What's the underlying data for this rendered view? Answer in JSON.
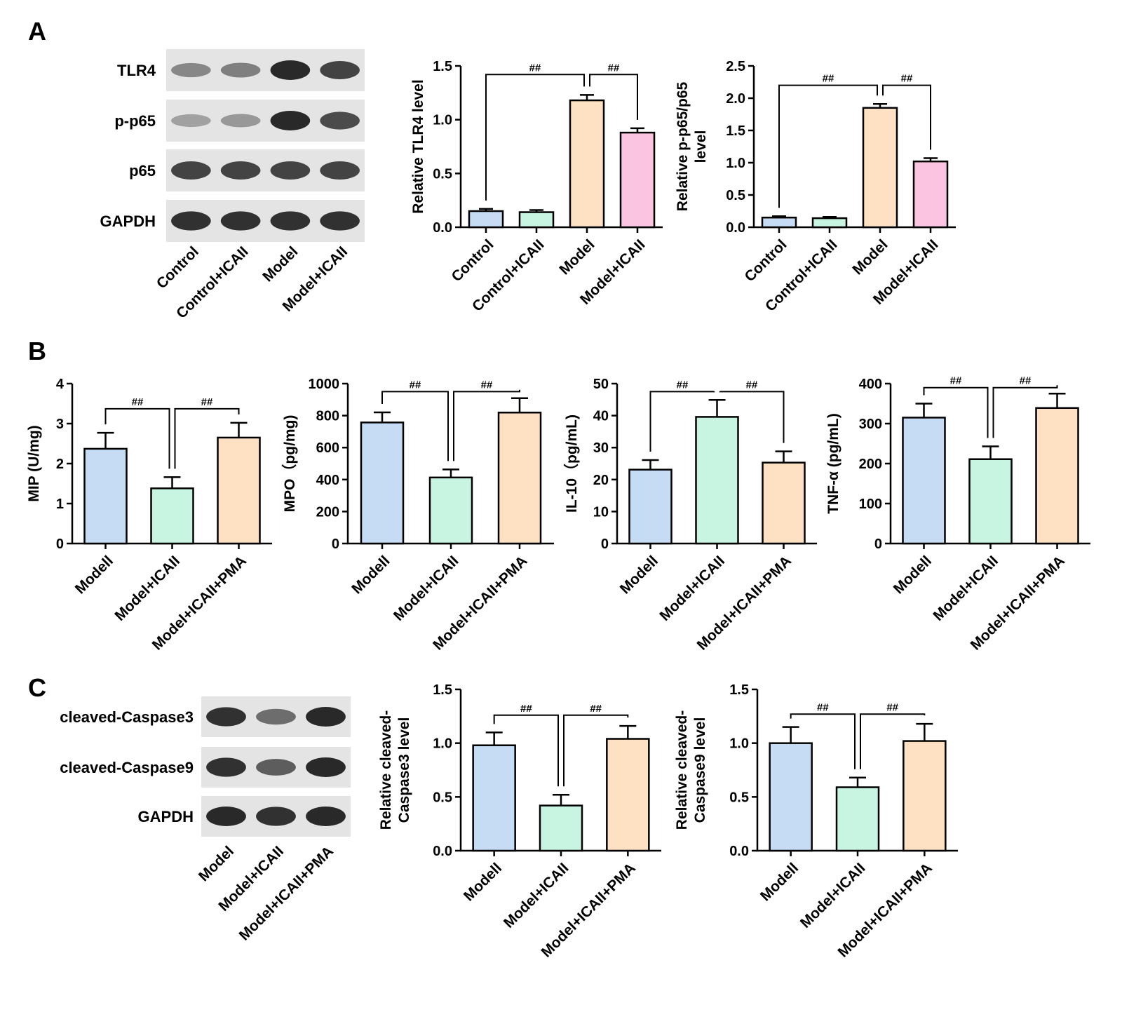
{
  "panels": {
    "A": {
      "letter": "A"
    },
    "B": {
      "letter": "B"
    },
    "C": {
      "letter": "C"
    }
  },
  "colors": {
    "blue": "#c6dcf5",
    "green": "#c8f5e2",
    "peach": "#fde1c2",
    "pink": "#fbc4e0"
  },
  "blots": [
    {
      "panel": "A",
      "bands": [
        "TLR4",
        "p-p65",
        "p65",
        "GAPDH"
      ],
      "band_intensity": [
        [
          0.45,
          0.5,
          1.0,
          0.85
        ],
        [
          0.3,
          0.35,
          1.0,
          0.8
        ],
        [
          0.85,
          0.85,
          0.85,
          0.85
        ],
        [
          0.95,
          0.95,
          0.95,
          0.95
        ]
      ],
      "lanes": [
        "Control",
        "Control+ICAII",
        "Model",
        "Model+ICAII"
      ]
    },
    {
      "panel": "C",
      "bands": [
        "cleaved-Caspase3",
        "cleaved-Caspase9",
        "GAPDH"
      ],
      "band_intensity": [
        [
          0.95,
          0.6,
          1.0
        ],
        [
          0.95,
          0.7,
          1.0
        ],
        [
          1.0,
          0.95,
          1.0
        ]
      ],
      "lanes": [
        "Model",
        "Model+ICAII",
        "Model+ICAII+PMA"
      ]
    }
  ],
  "chart_data": [
    {
      "panel": "A",
      "type": "bar",
      "categories": [
        "Control",
        "Control+ICAII",
        "Model",
        "Model+ICAII"
      ],
      "values": [
        0.15,
        0.14,
        1.18,
        0.88
      ],
      "errors": [
        0.02,
        0.02,
        0.05,
        0.04
      ],
      "bar_colors": [
        "#c6dcf5",
        "#c8f5e2",
        "#fde1c2",
        "#fbc4e0"
      ],
      "ylabel": [
        "Relative TLR4 level"
      ],
      "ylim": [
        0,
        1.5
      ],
      "yticks": [
        "0.0",
        "0.5",
        "1.0",
        "1.5"
      ],
      "significance": [
        {
          "label": "##",
          "bars": [
            0,
            2
          ],
          "y": 1.42
        },
        {
          "label": "##",
          "bars": [
            2,
            3
          ],
          "y": 1.42
        }
      ]
    },
    {
      "panel": "A",
      "type": "bar",
      "categories": [
        "Control",
        "Control+ICAII",
        "Model",
        "Model+ICAII"
      ],
      "values": [
        0.15,
        0.14,
        1.85,
        1.02
      ],
      "errors": [
        0.02,
        0.02,
        0.06,
        0.05
      ],
      "bar_colors": [
        "#c6dcf5",
        "#c8f5e2",
        "#fde1c2",
        "#fbc4e0"
      ],
      "ylabel": [
        "Relative p-p65/p65",
        "level"
      ],
      "ylim": [
        0,
        2.5
      ],
      "yticks": [
        "0.0",
        "0.5",
        "1.0",
        "1.5",
        "2.0",
        "2.5"
      ],
      "significance": [
        {
          "label": "##",
          "bars": [
            0,
            2
          ],
          "y": 2.2
        },
        {
          "label": "##",
          "bars": [
            2,
            3
          ],
          "y": 2.2
        }
      ]
    },
    {
      "panel": "B",
      "type": "bar",
      "categories": [
        "Modell",
        "Model+ICAII",
        "Model+ICAII+PMA"
      ],
      "values": [
        2.37,
        1.38,
        2.65
      ],
      "errors": [
        0.4,
        0.28,
        0.37
      ],
      "bar_colors": [
        "#c6dcf5",
        "#c8f5e2",
        "#fde1c2"
      ],
      "ylabel": [
        "MIP (U/mg)"
      ],
      "ylim": [
        0,
        4
      ],
      "yticks": [
        "0",
        "1",
        "2",
        "3",
        "4"
      ],
      "significance": [
        {
          "label": "##",
          "bars": [
            0,
            1
          ],
          "y": 3.37
        },
        {
          "label": "##",
          "bars": [
            1,
            2
          ],
          "y": 3.37
        }
      ]
    },
    {
      "panel": "B",
      "type": "bar",
      "categories": [
        "Modell",
        "Model+ICAII",
        "Model+ICAII+PMA"
      ],
      "values": [
        757,
        413,
        819
      ],
      "errors": [
        63,
        50,
        90
      ],
      "bar_colors": [
        "#c6dcf5",
        "#c8f5e2",
        "#fde1c2"
      ],
      "ylabel": [
        "MPO（pg/mg)"
      ],
      "ylim": [
        0,
        1000
      ],
      "yticks": [
        "0",
        "200",
        "400",
        "600",
        "800",
        "1000"
      ],
      "significance": [
        {
          "label": "##",
          "bars": [
            0,
            1
          ],
          "y": 950
        },
        {
          "label": "##",
          "bars": [
            1,
            2
          ],
          "y": 950
        }
      ]
    },
    {
      "panel": "B",
      "type": "bar",
      "categories": [
        "Modell",
        "Model+ICAII",
        "Model+ICAII+PMA"
      ],
      "values": [
        23.1,
        39.6,
        25.3
      ],
      "errors": [
        3.0,
        5.3,
        3.5
      ],
      "bar_colors": [
        "#c6dcf5",
        "#c8f5e2",
        "#fde1c2"
      ],
      "ylabel": [
        "IL-10（pg/mL)"
      ],
      "ylim": [
        0,
        50
      ],
      "yticks": [
        "0",
        "10",
        "20",
        "30",
        "40",
        "50"
      ],
      "significance": [
        {
          "label": "##",
          "bars": [
            0,
            1
          ],
          "y": 47.5
        },
        {
          "label": "##",
          "bars": [
            1,
            2
          ],
          "y": 47.5
        }
      ]
    },
    {
      "panel": "B",
      "type": "bar",
      "categories": [
        "Modell",
        "Model+ICAII",
        "Model+ICAII+PMA"
      ],
      "values": [
        315,
        211,
        339
      ],
      "errors": [
        35,
        32,
        36
      ],
      "bar_colors": [
        "#c6dcf5",
        "#c8f5e2",
        "#fde1c2"
      ],
      "ylabel": [
        "TNF-α (pg/mL)"
      ],
      "ylim": [
        0,
        400
      ],
      "yticks": [
        "0",
        "100",
        "200",
        "300",
        "400"
      ],
      "significance": [
        {
          "label": "##",
          "bars": [
            0,
            1
          ],
          "y": 390
        },
        {
          "label": "##",
          "bars": [
            1,
            2
          ],
          "y": 390
        }
      ]
    },
    {
      "panel": "C",
      "type": "bar",
      "categories": [
        "Modell",
        "Model+ICAII",
        "Model+ICAII+PMA"
      ],
      "values": [
        0.98,
        0.42,
        1.04
      ],
      "errors": [
        0.12,
        0.1,
        0.12
      ],
      "bar_colors": [
        "#c6dcf5",
        "#c8f5e2",
        "#fde1c2"
      ],
      "ylabel": [
        "Relative cleaved-",
        "Caspase3 level"
      ],
      "ylim": [
        0,
        1.5
      ],
      "yticks": [
        "0.0",
        "0.5",
        "1.0",
        "1.5"
      ],
      "significance": [
        {
          "label": "##",
          "bars": [
            0,
            1
          ],
          "y": 1.26
        },
        {
          "label": "##",
          "bars": [
            1,
            2
          ],
          "y": 1.26
        }
      ]
    },
    {
      "panel": "C",
      "type": "bar",
      "categories": [
        "Modell",
        "Model+ICAII",
        "Model+ICAII+PMA"
      ],
      "values": [
        1.0,
        0.59,
        1.02
      ],
      "errors": [
        0.15,
        0.09,
        0.16
      ],
      "bar_colors": [
        "#c6dcf5",
        "#c8f5e2",
        "#fde1c2"
      ],
      "ylabel": [
        "Relative cleaved-",
        "Caspase9 level"
      ],
      "ylim": [
        0,
        1.5
      ],
      "yticks": [
        "0.0",
        "0.5",
        "1.0",
        "1.5"
      ],
      "significance": [
        {
          "label": "##",
          "bars": [
            0,
            1
          ],
          "y": 1.27
        },
        {
          "label": "##",
          "bars": [
            1,
            2
          ],
          "y": 1.27
        }
      ]
    }
  ]
}
